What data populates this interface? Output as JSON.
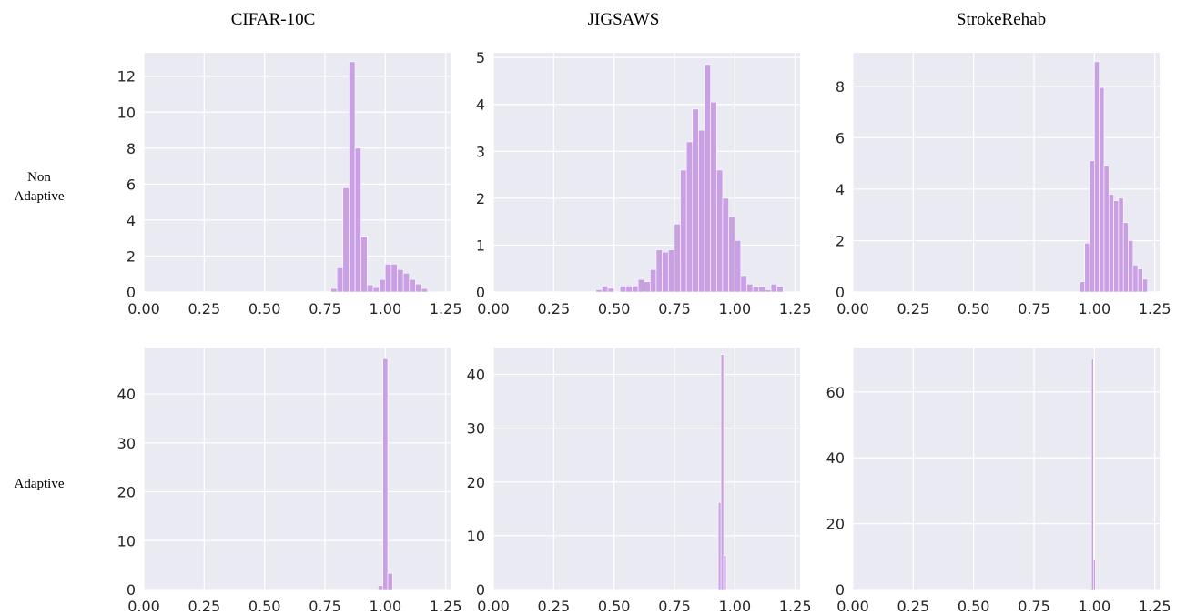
{
  "figure": {
    "column_titles": [
      "CIFAR-10C",
      "JIGSAWS",
      "StrokeRehab"
    ],
    "row_labels": [
      [
        "Non",
        "Adaptive"
      ],
      [
        "Adaptive"
      ]
    ],
    "colors": {
      "bar": "#c9a0e4",
      "panel_bg": "#eaeaf2",
      "grid": "#ffffff"
    }
  },
  "chart_data": [
    {
      "type": "bar",
      "row": "Non Adaptive",
      "column": "CIFAR-10C",
      "xlim": [
        0,
        1.27
      ],
      "ylim": [
        0,
        13.3
      ],
      "xticks": [
        "0.00",
        "0.25",
        "0.50",
        "0.75",
        "1.00",
        "1.25"
      ],
      "yticks": [
        "0",
        "2",
        "4",
        "6",
        "8",
        "10",
        "12"
      ],
      "bin_width": 0.025,
      "bins": [
        [
          0.787,
          0.2
        ],
        [
          0.812,
          1.35
        ],
        [
          0.837,
          5.8
        ],
        [
          0.862,
          12.8
        ],
        [
          0.887,
          8.0
        ],
        [
          0.912,
          3.1
        ],
        [
          0.937,
          0.4
        ],
        [
          0.962,
          0.25
        ],
        [
          0.987,
          0.7
        ],
        [
          1.012,
          1.55
        ],
        [
          1.037,
          1.55
        ],
        [
          1.062,
          1.25
        ],
        [
          1.087,
          1.05
        ],
        [
          1.112,
          0.7
        ],
        [
          1.137,
          0.45
        ],
        [
          1.162,
          0.2
        ]
      ]
    },
    {
      "type": "bar",
      "row": "Non Adaptive",
      "column": "JIGSAWS",
      "xlim": [
        0,
        1.27
      ],
      "ylim": [
        0,
        5.1
      ],
      "xticks": [
        "0.00",
        "0.25",
        "0.50",
        "0.75",
        "1.00",
        "1.25"
      ],
      "yticks": [
        "0",
        "1",
        "2",
        "3",
        "4",
        "5"
      ],
      "bin_width": 0.025,
      "bins": [
        [
          0.437,
          0.05
        ],
        [
          0.462,
          0.13
        ],
        [
          0.487,
          0.08
        ],
        [
          0.537,
          0.13
        ],
        [
          0.562,
          0.13
        ],
        [
          0.587,
          0.13
        ],
        [
          0.612,
          0.27
        ],
        [
          0.637,
          0.22
        ],
        [
          0.662,
          0.48
        ],
        [
          0.687,
          0.9
        ],
        [
          0.712,
          0.85
        ],
        [
          0.737,
          0.9
        ],
        [
          0.762,
          1.45
        ],
        [
          0.787,
          2.6
        ],
        [
          0.812,
          3.2
        ],
        [
          0.837,
          3.9
        ],
        [
          0.862,
          3.45
        ],
        [
          0.887,
          4.85
        ],
        [
          0.912,
          4.05
        ],
        [
          0.937,
          2.6
        ],
        [
          0.962,
          2.0
        ],
        [
          0.987,
          1.6
        ],
        [
          1.012,
          1.1
        ],
        [
          1.037,
          0.35
        ],
        [
          1.062,
          0.17
        ],
        [
          1.087,
          0.12
        ],
        [
          1.112,
          0.12
        ],
        [
          1.137,
          0.05
        ],
        [
          1.162,
          0.17
        ],
        [
          1.187,
          0.12
        ]
      ]
    },
    {
      "type": "bar",
      "row": "Non Adaptive",
      "column": "StrokeRehab",
      "xlim": [
        0,
        1.27
      ],
      "ylim": [
        0,
        9.3
      ],
      "xticks": [
        "0.00",
        "0.25",
        "0.50",
        "0.75",
        "1.00",
        "1.25"
      ],
      "yticks": [
        "0",
        "2",
        "4",
        "6",
        "8"
      ],
      "bin_width": 0.02,
      "bins": [
        [
          0.95,
          0.4
        ],
        [
          0.97,
          1.9
        ],
        [
          0.99,
          5.1
        ],
        [
          1.01,
          8.95
        ],
        [
          1.03,
          7.95
        ],
        [
          1.05,
          4.9
        ],
        [
          1.07,
          3.8
        ],
        [
          1.09,
          3.55
        ],
        [
          1.11,
          3.65
        ],
        [
          1.13,
          2.7
        ],
        [
          1.15,
          2.0
        ],
        [
          1.17,
          1.05
        ],
        [
          1.19,
          0.9
        ],
        [
          1.21,
          0.5
        ]
      ]
    },
    {
      "type": "bar",
      "row": "Adaptive",
      "column": "CIFAR-10C",
      "xlim": [
        0,
        1.27
      ],
      "ylim": [
        0,
        49.5
      ],
      "xticks": [
        "0.00",
        "0.25",
        "0.50",
        "0.75",
        "1.00",
        "1.25"
      ],
      "yticks": [
        "0",
        "10",
        "20",
        "30",
        "40"
      ],
      "bin_width": 0.02,
      "bins": [
        [
          0.98,
          0.8
        ],
        [
          1.0,
          47.2
        ],
        [
          1.02,
          3.3
        ]
      ]
    },
    {
      "type": "bar",
      "row": "Adaptive",
      "column": "JIGSAWS",
      "xlim": [
        0,
        1.27
      ],
      "ylim": [
        0,
        45.0
      ],
      "xticks": [
        "0.00",
        "0.25",
        "0.50",
        "0.75",
        "1.00",
        "1.25"
      ],
      "yticks": [
        "0",
        "10",
        "20",
        "30",
        "40"
      ],
      "bin_width": 0.011,
      "bins": [
        [
          0.937,
          16.2
        ],
        [
          0.948,
          43.7
        ],
        [
          0.959,
          6.3
        ]
      ]
    },
    {
      "type": "bar",
      "row": "Adaptive",
      "column": "StrokeRehab",
      "xlim": [
        0,
        1.27
      ],
      "ylim": [
        0,
        73.5
      ],
      "xticks": [
        "0.00",
        "0.25",
        "0.50",
        "0.75",
        "1.00",
        "1.25"
      ],
      "yticks": [
        "0",
        "20",
        "40",
        "60"
      ],
      "bin_width": 0.008,
      "bins": [
        [
          0.984,
          0.3
        ],
        [
          0.992,
          70.0
        ],
        [
          1.0,
          9.0
        ]
      ]
    }
  ]
}
